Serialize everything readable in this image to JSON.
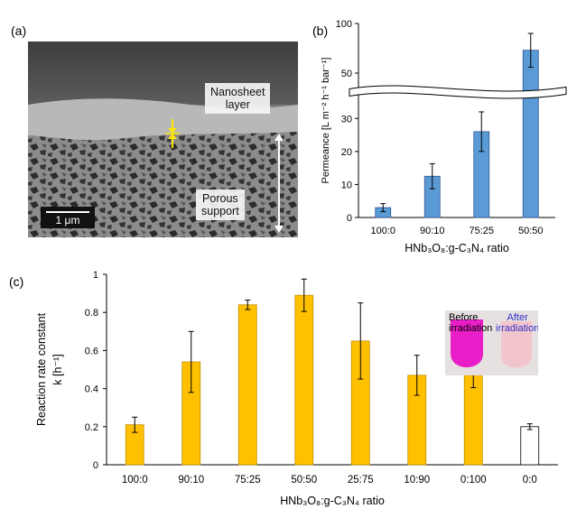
{
  "panels": {
    "a": {
      "letter": "(a)",
      "nanosheet_label_line1": "Nanosheet",
      "nanosheet_label_line2": "layer",
      "porous_label_line1": "Porous",
      "porous_label_line2": "support",
      "scale_bar": "1 μm"
    },
    "b": {
      "letter": "(b)"
    },
    "c": {
      "letter": "(c)",
      "inset_before_line1": "Before",
      "inset_before_line2": "irradiation",
      "inset_after_line1": "After",
      "inset_after_line2": "irradiation"
    }
  },
  "colors": {
    "permeance_bar": "#5b9bd5",
    "rate_bar": "#ffc000",
    "control_bar": "#ffffff",
    "after_text": "#3333cc",
    "magenta": "#e91ec8"
  },
  "chart_data": [
    {
      "type": "bar",
      "panel": "b",
      "categories": [
        "100:0",
        "90:10",
        "75:25",
        "50:50"
      ],
      "values": [
        3,
        12.5,
        26,
        73
      ],
      "errors": [
        1.2,
        3.8,
        6,
        17
      ],
      "ylabel": "Permeance [L m⁻² h⁻¹ bar⁻¹]",
      "xlabel": "HNb₃O₈:g-C₃N₄ ratio",
      "axis_break": true,
      "lower_ylim": [
        0,
        35
      ],
      "lower_ticks": [
        "0",
        "10",
        "20",
        "30"
      ],
      "upper_ylim": [
        40,
        100
      ],
      "upper_ticks": [
        "50",
        "100"
      ]
    },
    {
      "type": "bar",
      "panel": "c",
      "categories": [
        "100:0",
        "90:10",
        "75:25",
        "50:50",
        "25:75",
        "10:90",
        "0:100",
        "0:0"
      ],
      "values": [
        0.21,
        0.54,
        0.84,
        0.89,
        0.65,
        0.47,
        0.47,
        0.2
      ],
      "errors": [
        0.04,
        0.16,
        0.025,
        0.085,
        0.2,
        0.105,
        0.065,
        0.015
      ],
      "ylabel_line1": "Reaction rate constant",
      "ylabel_line2": "k [h⁻¹]",
      "xlabel": "HNb₃O₈:g-C₃N₄ ratio",
      "ylim": [
        0,
        1
      ],
      "ticks": [
        "0",
        "0.2",
        "0.4",
        "0.6",
        "0.8",
        "1"
      ]
    }
  ]
}
